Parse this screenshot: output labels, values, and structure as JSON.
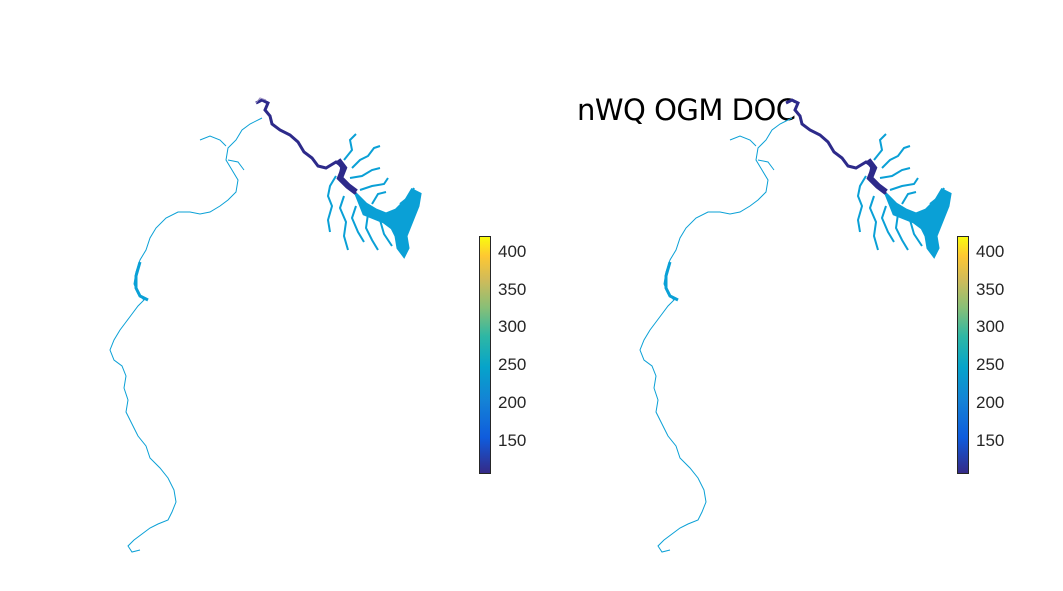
{
  "title": "nWQ OGM DOC",
  "colorbar": {
    "ticks": [
      "400",
      "350",
      "300",
      "250",
      "200",
      "150"
    ],
    "tick_values": [
      400,
      350,
      300,
      250,
      200,
      150
    ],
    "range": [
      100,
      420
    ],
    "colormap": "parula"
  },
  "colors": {
    "river_low": "#2d2a8a",
    "river_mid": "#0aa0d6",
    "river_high": "#f9fb0e"
  },
  "panels": [
    {
      "id": "left"
    },
    {
      "id": "right"
    }
  ]
}
